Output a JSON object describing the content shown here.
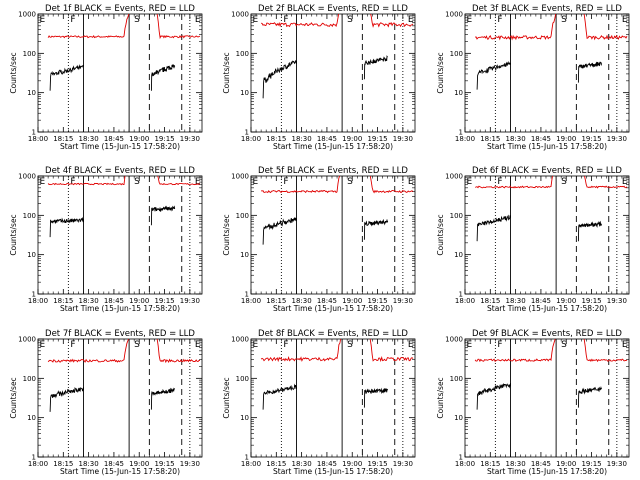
{
  "colors": {
    "events": "#000000",
    "lld": "#e00000",
    "axes": "#000000",
    "background": "#ffffff"
  },
  "chart_data": [
    {
      "type": "line",
      "title": "Det 1f BLACK = Events, RED = LLD",
      "xlabel": "Start Time (15-Jun-15 17:58:20)",
      "ylabel": "Counts/sec",
      "yscale": "log",
      "ylim": [
        1,
        1000
      ],
      "xticks": [
        "18:00",
        "18:15",
        "18:30",
        "18:45",
        "19:00",
        "19:15",
        "19:30"
      ],
      "yticks": [
        "1",
        "10",
        "100",
        "1000"
      ],
      "series": [
        {
          "color": "#000000",
          "base": [
            28,
            45
          ],
          "peak": [
            28,
            48
          ]
        },
        {
          "color": "#e00000",
          "base": [
            250,
            280
          ],
          "spike": 1500
        }
      ],
      "markers": {
        "solid": [
          18.45,
          18.9
        ],
        "dashed": [
          19.1,
          19.42
        ],
        "dotted": [
          18.3,
          19.5
        ]
      },
      "flags": [
        "E",
        "F",
        "S",
        "E"
      ]
    },
    {
      "type": "line",
      "title": "Det 2f BLACK = Events, RED = LLD",
      "xlabel": "Start Time (15-Jun-15 17:58:20)",
      "ylabel": "Counts/sec",
      "yscale": "log",
      "ylim": [
        1,
        1000
      ],
      "xticks": [
        "18:00",
        "18:15",
        "18:30",
        "18:45",
        "19:00",
        "19:15",
        "19:30"
      ],
      "yticks": [
        "1",
        "10",
        "100",
        "1000"
      ],
      "series": [
        {
          "color": "#000000",
          "base": [
            18,
            60
          ],
          "peak": [
            55,
            75
          ]
        },
        {
          "color": "#e00000",
          "base": [
            480,
            600
          ],
          "spike": 1500
        }
      ],
      "markers": {
        "solid": [
          18.45,
          18.9
        ],
        "dashed": [
          19.1,
          19.42
        ],
        "dotted": [
          18.3,
          19.5
        ]
      },
      "flags": [
        "E",
        "F",
        "S",
        "E"
      ]
    },
    {
      "type": "line",
      "title": "Det 3f BLACK = Events, RED = LLD",
      "xlabel": "Start Time (15-Jun-15 17:58:20)",
      "ylabel": "Counts/sec",
      "yscale": "log",
      "ylim": [
        1,
        1000
      ],
      "xticks": [
        "18:00",
        "18:15",
        "18:30",
        "18:45",
        "19:00",
        "19:15",
        "19:30"
      ],
      "yticks": [
        "1",
        "10",
        "100",
        "1000"
      ],
      "series": [
        {
          "color": "#000000",
          "base": [
            30,
            55
          ],
          "peak": [
            45,
            55
          ]
        },
        {
          "color": "#e00000",
          "base": [
            230,
            280
          ],
          "spike": 1500
        }
      ],
      "markers": {
        "solid": [
          18.45,
          18.9
        ],
        "dashed": [
          19.1,
          19.42
        ],
        "dotted": [
          18.3,
          19.5
        ]
      },
      "flags": [
        "E",
        "F",
        "S",
        "E"
      ]
    },
    {
      "type": "line",
      "title": "Det 4f BLACK = Events, RED = LLD",
      "xlabel": "Start Time (15-Jun-15 17:58:20)",
      "ylabel": "Counts/sec",
      "yscale": "log",
      "ylim": [
        1,
        1000
      ],
      "xticks": [
        "18:00",
        "18:15",
        "18:30",
        "18:45",
        "19:00",
        "19:15",
        "19:30"
      ],
      "yticks": [
        "1",
        "10",
        "100",
        "1000"
      ],
      "series": [
        {
          "color": "#000000",
          "base": [
            70,
            75
          ],
          "peak": [
            140,
            150
          ]
        },
        {
          "color": "#e00000",
          "base": [
            600,
            650
          ],
          "spike": 1500
        }
      ],
      "markers": {
        "solid": [
          18.45,
          18.9
        ],
        "dashed": [
          19.1,
          19.42
        ],
        "dotted": [
          18.3,
          19.5
        ]
      },
      "flags": [
        "E",
        "F",
        "S",
        "E"
      ]
    },
    {
      "type": "line",
      "title": "Det 5f BLACK = Events, RED = LLD",
      "xlabel": "Start Time (15-Jun-15 17:58:20)",
      "ylabel": "Counts/sec",
      "yscale": "log",
      "ylim": [
        1,
        1000
      ],
      "xticks": [
        "18:00",
        "18:15",
        "18:30",
        "18:45",
        "19:00",
        "19:15",
        "19:30"
      ],
      "yticks": [
        "1",
        "10",
        "100",
        "1000"
      ],
      "series": [
        {
          "color": "#000000",
          "base": [
            45,
            80
          ],
          "peak": [
            60,
            70
          ]
        },
        {
          "color": "#e00000",
          "base": [
            380,
            430
          ],
          "spike": 1500
        }
      ],
      "markers": {
        "solid": [
          18.45,
          18.9
        ],
        "dashed": [
          19.1,
          19.42
        ],
        "dotted": [
          18.3,
          19.5
        ]
      },
      "flags": [
        "E",
        "F",
        "S",
        "E"
      ]
    },
    {
      "type": "line",
      "title": "Det 6f BLACK = Events, RED = LLD",
      "xlabel": "Start Time (15-Jun-15 17:58:20)",
      "ylabel": "Counts/sec",
      "yscale": "log",
      "ylim": [
        1,
        1000
      ],
      "xticks": [
        "18:00",
        "18:15",
        "18:30",
        "18:45",
        "19:00",
        "19:15",
        "19:30"
      ],
      "yticks": [
        "1",
        "10",
        "100",
        "1000"
      ],
      "series": [
        {
          "color": "#000000",
          "base": [
            55,
            90
          ],
          "peak": [
            55,
            60
          ]
        },
        {
          "color": "#e00000",
          "base": [
            500,
            550
          ],
          "spike": 1500
        }
      ],
      "markers": {
        "solid": [
          18.45,
          18.9
        ],
        "dashed": [
          19.1,
          19.42
        ],
        "dotted": [
          18.3,
          19.5
        ]
      },
      "flags": [
        "E",
        "F",
        "S",
        "E"
      ]
    },
    {
      "type": "line",
      "title": "Det 7f BLACK = Events, RED = LLD",
      "xlabel": "Start Time (15-Jun-15 17:58:20)",
      "ylabel": "Counts/sec",
      "yscale": "log",
      "ylim": [
        1,
        1000
      ],
      "xticks": [
        "18:00",
        "18:15",
        "18:30",
        "18:45",
        "19:00",
        "19:15",
        "19:30"
      ],
      "yticks": [
        "1",
        "10",
        "100",
        "1000"
      ],
      "series": [
        {
          "color": "#000000",
          "base": [
            35,
            55
          ],
          "peak": [
            40,
            50
          ]
        },
        {
          "color": "#e00000",
          "base": [
            260,
            300
          ],
          "spike": 1500
        }
      ],
      "markers": {
        "solid": [
          18.45,
          18.9
        ],
        "dashed": [
          19.1,
          19.42
        ],
        "dotted": [
          18.3,
          19.5
        ]
      },
      "flags": [
        "E",
        "F",
        "S",
        "E"
      ]
    },
    {
      "type": "line",
      "title": "Det 8f BLACK = Events, RED = LLD",
      "xlabel": "Start Time (15-Jun-15 17:58:20)",
      "ylabel": "Counts/sec",
      "yscale": "log",
      "ylim": [
        1,
        1000
      ],
      "xticks": [
        "18:00",
        "18:15",
        "18:30",
        "18:45",
        "19:00",
        "19:15",
        "19:30"
      ],
      "yticks": [
        "1",
        "10",
        "100",
        "1000"
      ],
      "series": [
        {
          "color": "#000000",
          "base": [
            40,
            60
          ],
          "peak": [
            45,
            50
          ]
        },
        {
          "color": "#e00000",
          "base": [
            280,
            340
          ],
          "spike": 1500
        }
      ],
      "markers": {
        "solid": [
          18.45,
          18.9
        ],
        "dashed": [
          19.1,
          19.42
        ],
        "dotted": [
          18.3,
          19.5
        ]
      },
      "flags": [
        "E",
        "F",
        "S",
        "E"
      ]
    },
    {
      "type": "line",
      "title": "Det 9f BLACK = Events, RED = LLD",
      "xlabel": "Start Time (15-Jun-15 17:58:20)",
      "ylabel": "Counts/sec",
      "yscale": "log",
      "ylim": [
        1,
        1000
      ],
      "xticks": [
        "18:00",
        "18:15",
        "18:30",
        "18:45",
        "19:00",
        "19:15",
        "19:30"
      ],
      "yticks": [
        "1",
        "10",
        "100",
        "1000"
      ],
      "series": [
        {
          "color": "#000000",
          "base": [
            40,
            70
          ],
          "peak": [
            45,
            55
          ]
        },
        {
          "color": "#e00000",
          "base": [
            270,
            310
          ],
          "spike": 1500
        }
      ],
      "markers": {
        "solid": [
          18.45,
          18.9
        ],
        "dashed": [
          19.1,
          19.42
        ],
        "dotted": [
          18.3,
          19.5
        ]
      },
      "flags": [
        "E",
        "F",
        "S",
        "E"
      ]
    }
  ]
}
